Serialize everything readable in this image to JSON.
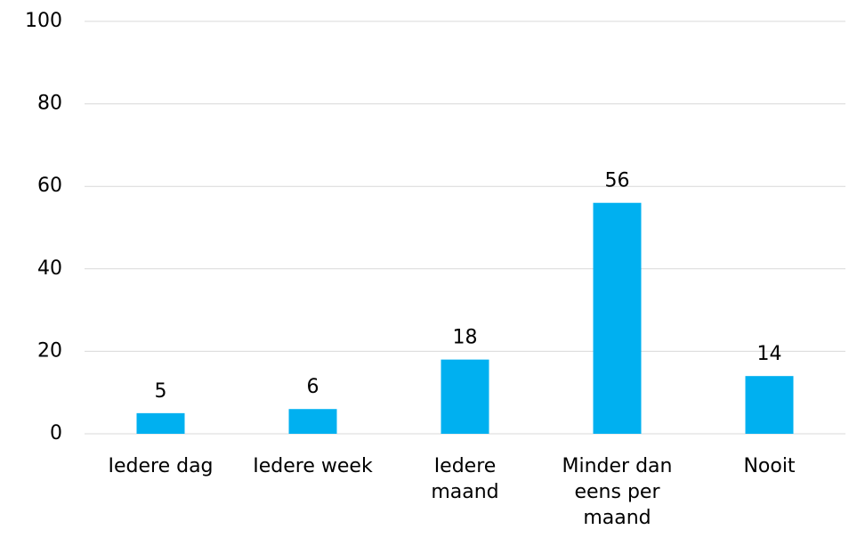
{
  "chart_data": {
    "type": "bar",
    "categories": [
      "Iedere dag",
      "Iedere week",
      "Iedere maand",
      "Minder dan eens per maand",
      "Nooit"
    ],
    "values": [
      5,
      6,
      18,
      56,
      14
    ],
    "color": "#00b0f0",
    "ylim": [
      0,
      100
    ],
    "yticks": [
      0,
      20,
      40,
      60,
      80,
      100
    ],
    "grid": true
  }
}
